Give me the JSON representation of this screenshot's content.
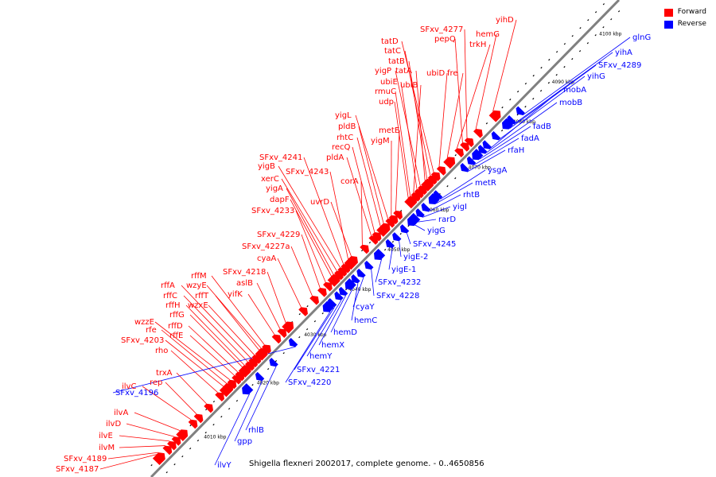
{
  "caption": "Shigella flexneri 2002017, complete genome. - 0..4650856",
  "legend": [
    {
      "label": "Forward",
      "color": "#ff0000"
    },
    {
      "label": "Reverse",
      "color": "#0000ff"
    }
  ],
  "colors": {
    "forward": "#ff0000",
    "reverse": "#0000ff",
    "backbone": "#808080"
  },
  "scale_labels": [
    "4010 kbp",
    "4020 kbp",
    "4030 kbp",
    "4040 kbp",
    "4050 kbp",
    "4060 kbp",
    "4070 kbp",
    "4080 kbp",
    "4090 kbp",
    "4100 kbp"
  ],
  "forward_genes": [
    "SFxv_4187",
    "SFxv_4189",
    "ilvM",
    "ilvE",
    "ilvD",
    "ilvA",
    "ilvC",
    "rep",
    "trxA",
    "rho",
    "SFxv_4203",
    "rfe",
    "wzzE",
    "rffE",
    "rffD",
    "rffG",
    "rffH",
    "rffC",
    "rffA",
    "wzxE",
    "rffT",
    "wzyE",
    "rffM",
    "yifK",
    "aslB",
    "SFxv_4218",
    "cyaA",
    "SFxv_4227a",
    "SFxv_4229",
    "SFxv_4233",
    "dapF",
    "yigA",
    "xerC",
    "yigB",
    "SFxv_4241",
    "SFxv_4243",
    "uvrD",
    "corA",
    "pldA",
    "recQ",
    "rhtC",
    "pldB",
    "yigL",
    "yigM",
    "metE",
    "udp",
    "rmuC",
    "ubiB",
    "ubiE",
    "yigP",
    "tatA",
    "tatB",
    "tatC",
    "tatD",
    "ubiD",
    "fre",
    "trkH",
    "pepQ",
    "SFxv_4277",
    "hemG",
    "yihD"
  ],
  "reverse_genes": [
    "ilvY",
    "gpp",
    "rhlB",
    "SFxv_4196",
    "SFxv_4220",
    "SFxv_4221",
    "hemY",
    "hemX",
    "hemD",
    "hemC",
    "cyaY",
    "SFxv_4228",
    "SFxv_4232",
    "yigE-1",
    "yigE-2",
    "SFxv_4245",
    "yigG",
    "rarD",
    "yigI",
    "rhtB",
    "metR",
    "ysgA",
    "rfaH",
    "fadA",
    "fadB",
    "mobB",
    "mobA",
    "yihG",
    "SFxv_4289",
    "yihA",
    "glnG"
  ]
}
